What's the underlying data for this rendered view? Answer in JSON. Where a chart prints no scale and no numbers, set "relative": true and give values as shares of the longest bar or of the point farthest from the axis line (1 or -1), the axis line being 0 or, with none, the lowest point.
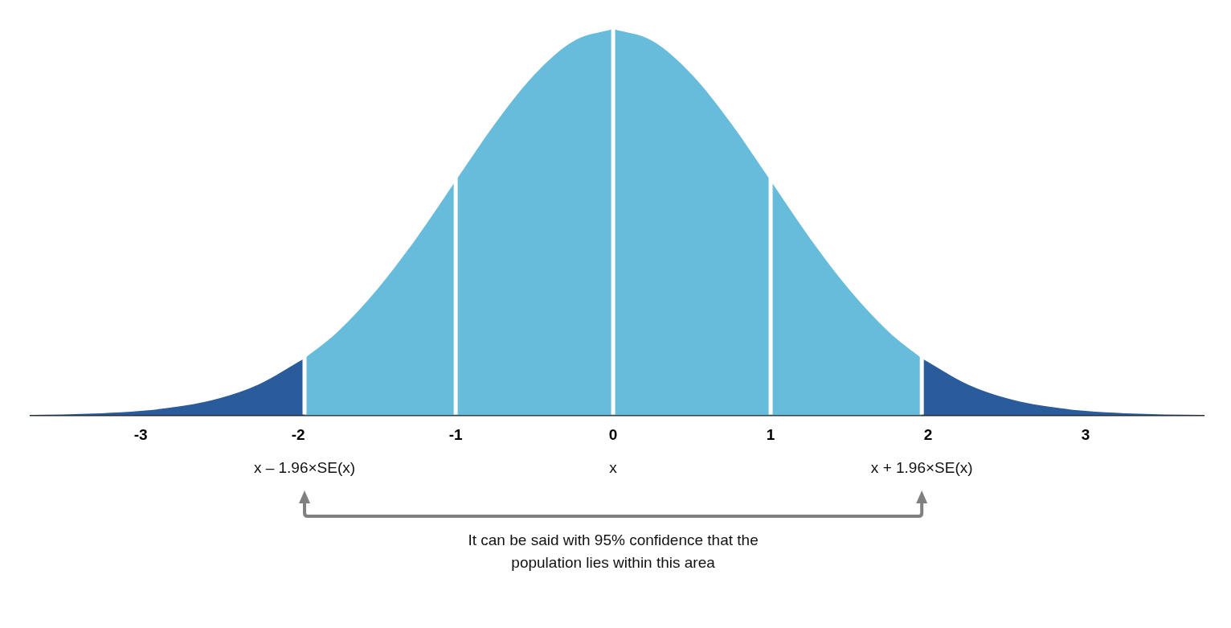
{
  "chart_data": {
    "type": "area",
    "relative": true,
    "xlim": [
      -3.7,
      3.75
    ],
    "xticks": [
      -3,
      -2,
      -1,
      0,
      1,
      2,
      3
    ],
    "x2lim": [
      -3.7,
      3.75
    ],
    "x2ticks": [
      {
        "value": -1.96,
        "label": "x – 1.96×SE(x)"
      },
      {
        "value": 0,
        "label": "x"
      },
      {
        "value": 1.96,
        "label": "x + 1.96×SE(x)"
      }
    ],
    "grid": false,
    "legend": false,
    "series": [
      {
        "color": "#2a5b9b",
        "x": [
          -3.7,
          -3.5,
          -3.25,
          -3,
          -2.75,
          -2.5,
          -2.25,
          -1.96
        ],
        "values": [
          0.001,
          0.002,
          0.005,
          0.011,
          0.023,
          0.044,
          0.08,
          0.147
        ]
      },
      {
        "color": "#67bcdc",
        "x": [
          -1.96,
          -1.75,
          -1.5,
          -1.25,
          -1
        ],
        "values": [
          0.147,
          0.216,
          0.325,
          0.458,
          0.607
        ]
      },
      {
        "color": "#67bcdc",
        "x": [
          -1,
          -0.75,
          -0.5,
          -0.25,
          0
        ],
        "values": [
          0.607,
          0.755,
          0.882,
          0.969,
          1
        ]
      },
      {
        "color": "#67bcdc",
        "x": [
          0,
          0.25,
          0.5,
          0.75,
          1
        ],
        "values": [
          1,
          0.969,
          0.882,
          0.755,
          0.607
        ]
      },
      {
        "color": "#67bcdc",
        "x": [
          1,
          1.25,
          1.5,
          1.75,
          1.96
        ],
        "values": [
          0.607,
          0.458,
          0.325,
          0.216,
          0.147
        ]
      },
      {
        "color": "#2a5b9b",
        "x": [
          1.96,
          2.25,
          2.5,
          2.75,
          3,
          3.25,
          3.5,
          3.75
        ],
        "values": [
          0.147,
          0.08,
          0.044,
          0.023,
          0.011,
          0.005,
          0.002,
          0.001
        ]
      }
    ],
    "ref_lines": [
      {
        "axis": "x",
        "value": -1.96,
        "color": "#ffffff"
      },
      {
        "axis": "x",
        "value": -1,
        "color": "#ffffff"
      },
      {
        "axis": "x",
        "value": 0,
        "color": "#ffffff"
      },
      {
        "axis": "x",
        "value": 1,
        "color": "#ffffff"
      },
      {
        "axis": "x",
        "value": 1.96,
        "color": "#ffffff"
      }
    ],
    "annotations": [
      "It can be said with 95% confidence that the population lies within this area"
    ]
  }
}
